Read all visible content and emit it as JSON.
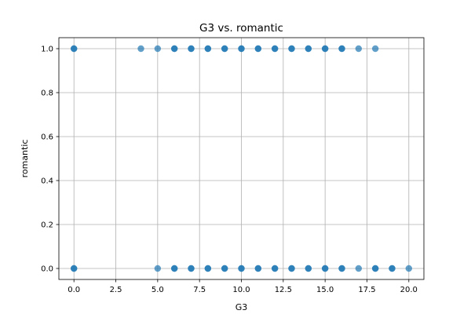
{
  "chart_data": {
    "type": "scatter",
    "title": "G3 vs. romantic",
    "xlabel": "G3",
    "ylabel": "romantic",
    "xlim": [
      -0.9,
      20.9
    ],
    "ylim": [
      -0.05,
      1.05
    ],
    "x_ticks": [
      0.0,
      2.5,
      5.0,
      7.5,
      10.0,
      12.5,
      15.0,
      17.5,
      20.0
    ],
    "x_tick_labels": [
      "0.0",
      "2.5",
      "5.0",
      "7.5",
      "10.0",
      "12.5",
      "15.0",
      "17.5",
      "20.0"
    ],
    "y_ticks": [
      0.0,
      0.2,
      0.4,
      0.6,
      0.8,
      1.0
    ],
    "y_tick_labels": [
      "0.0",
      "0.2",
      "0.4",
      "0.6",
      "0.8",
      "1.0"
    ],
    "grid": true,
    "marker_color": "#1f77b4",
    "points": [
      {
        "x": 0,
        "y": 1
      },
      {
        "x": 4,
        "y": 1
      },
      {
        "x": 5,
        "y": 1
      },
      {
        "x": 6,
        "y": 1
      },
      {
        "x": 7,
        "y": 1
      },
      {
        "x": 8,
        "y": 1
      },
      {
        "x": 9,
        "y": 1
      },
      {
        "x": 10,
        "y": 1
      },
      {
        "x": 11,
        "y": 1
      },
      {
        "x": 12,
        "y": 1
      },
      {
        "x": 13,
        "y": 1
      },
      {
        "x": 14,
        "y": 1
      },
      {
        "x": 15,
        "y": 1
      },
      {
        "x": 16,
        "y": 1
      },
      {
        "x": 17,
        "y": 1
      },
      {
        "x": 18,
        "y": 1
      },
      {
        "x": 0,
        "y": 0
      },
      {
        "x": 5,
        "y": 0
      },
      {
        "x": 6,
        "y": 0
      },
      {
        "x": 7,
        "y": 0
      },
      {
        "x": 8,
        "y": 0
      },
      {
        "x": 9,
        "y": 0
      },
      {
        "x": 10,
        "y": 0
      },
      {
        "x": 11,
        "y": 0
      },
      {
        "x": 12,
        "y": 0
      },
      {
        "x": 13,
        "y": 0
      },
      {
        "x": 14,
        "y": 0
      },
      {
        "x": 15,
        "y": 0
      },
      {
        "x": 16,
        "y": 0
      },
      {
        "x": 17,
        "y": 0
      },
      {
        "x": 18,
        "y": 0
      },
      {
        "x": 19,
        "y": 0
      },
      {
        "x": 20,
        "y": 0
      }
    ],
    "dense_points": [
      {
        "x": 0,
        "y": 1
      },
      {
        "x": 6,
        "y": 1
      },
      {
        "x": 7,
        "y": 1
      },
      {
        "x": 8,
        "y": 1
      },
      {
        "x": 9,
        "y": 1
      },
      {
        "x": 10,
        "y": 1
      },
      {
        "x": 11,
        "y": 1
      },
      {
        "x": 12,
        "y": 1
      },
      {
        "x": 13,
        "y": 1
      },
      {
        "x": 14,
        "y": 1
      },
      {
        "x": 15,
        "y": 1
      },
      {
        "x": 16,
        "y": 1
      },
      {
        "x": 0,
        "y": 0
      },
      {
        "x": 6,
        "y": 0
      },
      {
        "x": 7,
        "y": 0
      },
      {
        "x": 8,
        "y": 0
      },
      {
        "x": 9,
        "y": 0
      },
      {
        "x": 10,
        "y": 0
      },
      {
        "x": 11,
        "y": 0
      },
      {
        "x": 12,
        "y": 0
      },
      {
        "x": 13,
        "y": 0
      },
      {
        "x": 14,
        "y": 0
      },
      {
        "x": 15,
        "y": 0
      },
      {
        "x": 16,
        "y": 0
      },
      {
        "x": 18,
        "y": 0
      },
      {
        "x": 19,
        "y": 0
      }
    ]
  }
}
